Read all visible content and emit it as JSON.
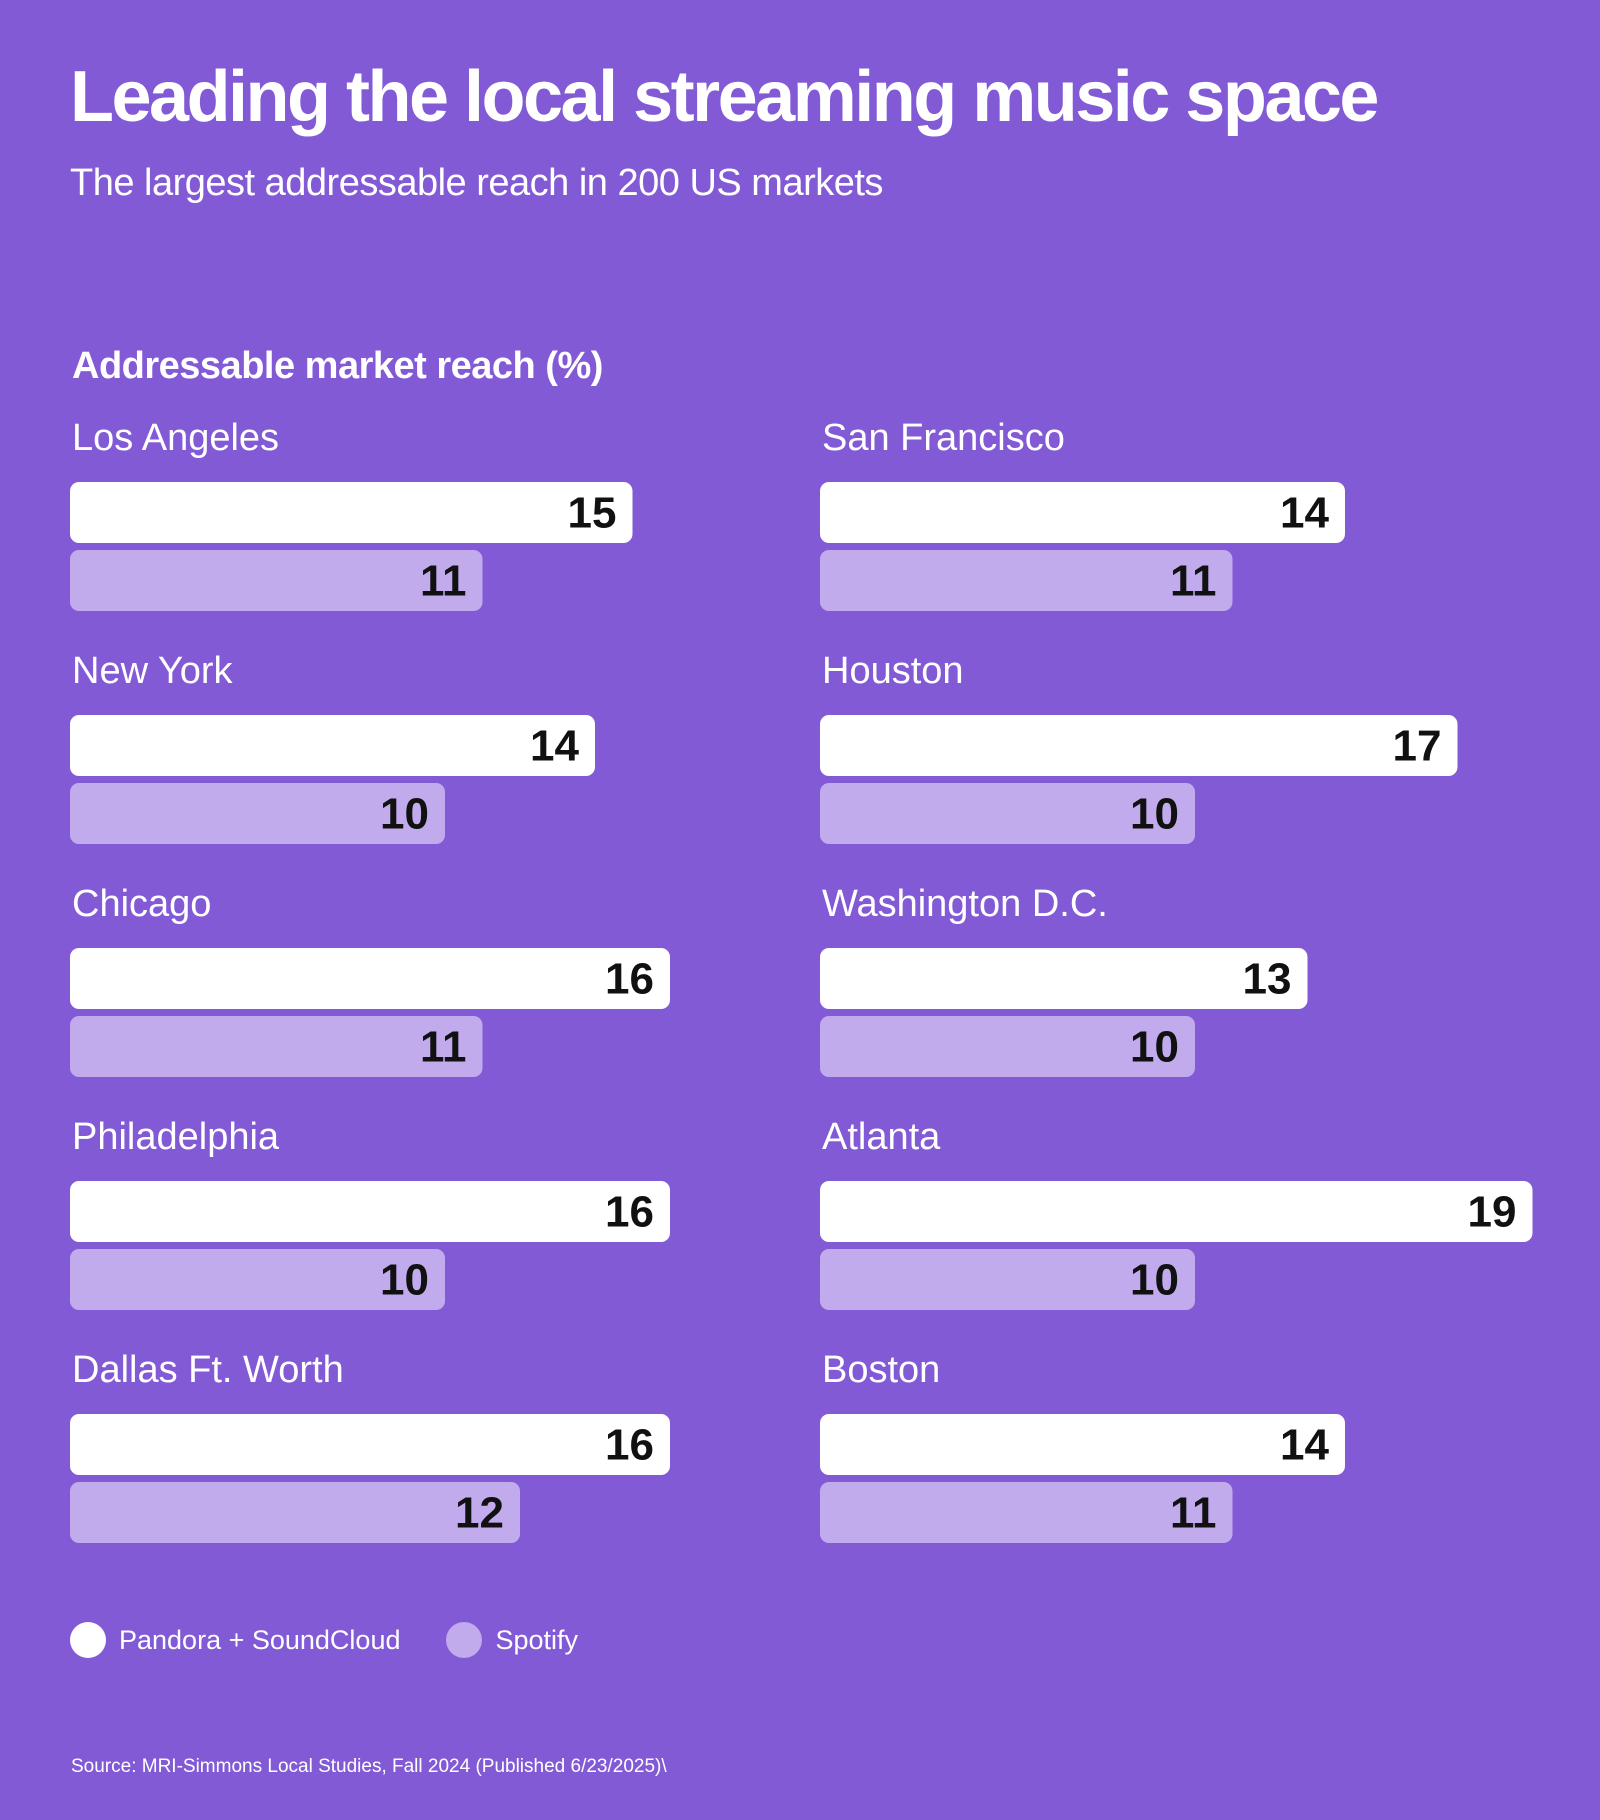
{
  "header": {
    "title": "Leading the local streaming music space",
    "subtitle": "The largest addressable reach in 200 US markets"
  },
  "legend": {
    "items": [
      {
        "label": "Pandora + SoundCloud",
        "color": "#FFFFFF"
      },
      {
        "label": "Spotify",
        "color": "#C2ABED"
      }
    ]
  },
  "footer": {
    "source": "Source: MRI-Simmons Local Studies, Fall 2024 (Published 6/23/2025)\\"
  },
  "chart_data": {
    "type": "bar",
    "orientation": "horizontal",
    "title": "Addressable market reach (%)",
    "xlabel": "",
    "ylabel": "",
    "grid": false,
    "legend_position": "bottom-left",
    "categories": [
      "Los Angeles",
      "New York",
      "Chicago",
      "Philadelphia",
      "Dallas Ft. Worth",
      "San Francisco",
      "Houston",
      "Washington D.C.",
      "Atlanta",
      "Boston"
    ],
    "series": [
      {
        "name": "Pandora + SoundCloud",
        "color": "#FFFFFF",
        "values": [
          15,
          14,
          16,
          16,
          16,
          14,
          17,
          13,
          19,
          14
        ]
      },
      {
        "name": "Spotify",
        "color": "#C2ABED",
        "values": [
          11,
          10,
          11,
          10,
          12,
          11,
          10,
          10,
          10,
          11
        ]
      }
    ]
  }
}
